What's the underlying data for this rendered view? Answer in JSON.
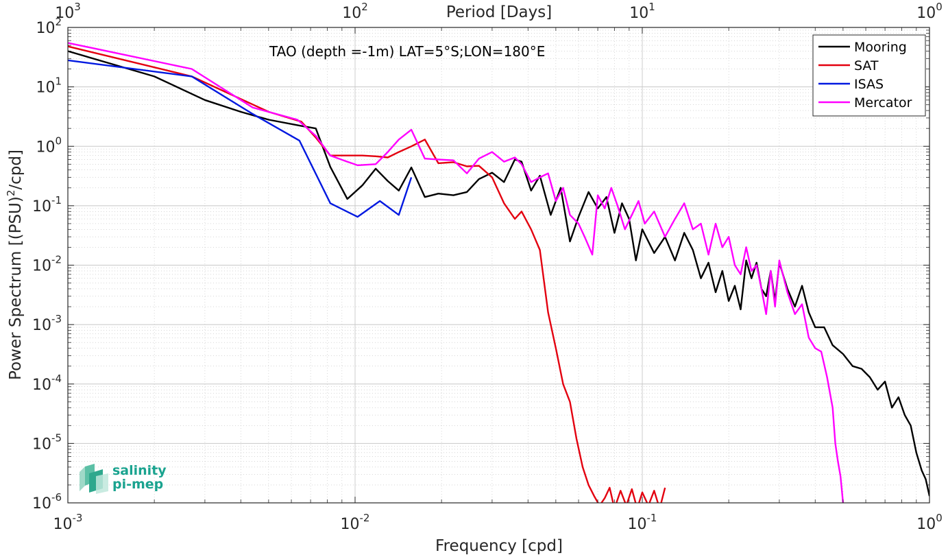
{
  "chart_data": {
    "type": "line",
    "title": "",
    "annotation": "TAO (depth =-1m) LAT=5°S;LON=180°E",
    "xlabel": "Frequency [cpd]",
    "ylabel": "Power Spectrum [(PSU)",
    "ylabel_sup": "2",
    "ylabel_tail": "/cpd]",
    "top_xlabel": "Period [Days]",
    "x_scale": "log",
    "y_scale": "log",
    "xlim": [
      0.001,
      1
    ],
    "ylim": [
      1e-06,
      100
    ],
    "grid": true,
    "legend_position": "top-right",
    "x_ticks": [
      {
        "value": 0.001,
        "base": "10",
        "exp": "-3"
      },
      {
        "value": 0.01,
        "base": "10",
        "exp": "-2"
      },
      {
        "value": 0.1,
        "base": "10",
        "exp": "-1"
      },
      {
        "value": 1,
        "base": "10",
        "exp": "0"
      }
    ],
    "top_ticks": [
      {
        "value": 0.001,
        "base": "10",
        "exp": "3"
      },
      {
        "value": 0.01,
        "base": "10",
        "exp": "2"
      },
      {
        "value": 0.1,
        "base": "10",
        "exp": "1"
      },
      {
        "value": 1,
        "base": "10",
        "exp": "0"
      }
    ],
    "y_ticks": [
      {
        "value": 100,
        "base": "10",
        "exp": "2"
      },
      {
        "value": 10,
        "base": "10",
        "exp": "1"
      },
      {
        "value": 1,
        "base": "10",
        "exp": "0"
      },
      {
        "value": 0.1,
        "base": "10",
        "exp": "-1"
      },
      {
        "value": 0.01,
        "base": "10",
        "exp": "-2"
      },
      {
        "value": 0.001,
        "base": "10",
        "exp": "-3"
      },
      {
        "value": 0.0001,
        "base": "10",
        "exp": "-4"
      },
      {
        "value": 1e-05,
        "base": "10",
        "exp": "-5"
      },
      {
        "value": 1e-06,
        "base": "10",
        "exp": "-6"
      }
    ],
    "series": [
      {
        "name": "Mooring",
        "color": "#000000",
        "x": [
          0.001,
          0.002,
          0.003,
          0.004,
          0.005,
          0.0065,
          0.0073,
          0.0082,
          0.0094,
          0.0106,
          0.0118,
          0.013,
          0.0142,
          0.0157,
          0.0175,
          0.0195,
          0.022,
          0.0245,
          0.027,
          0.03,
          0.033,
          0.036,
          0.038,
          0.041,
          0.044,
          0.048,
          0.052,
          0.056,
          0.06,
          0.065,
          0.07,
          0.075,
          0.08,
          0.085,
          0.09,
          0.095,
          0.1,
          0.11,
          0.12,
          0.13,
          0.14,
          0.15,
          0.16,
          0.17,
          0.18,
          0.19,
          0.2,
          0.21,
          0.22,
          0.23,
          0.24,
          0.25,
          0.26,
          0.27,
          0.28,
          0.29,
          0.3,
          0.32,
          0.34,
          0.36,
          0.38,
          0.4,
          0.43,
          0.46,
          0.5,
          0.54,
          0.58,
          0.62,
          0.66,
          0.7,
          0.74,
          0.78,
          0.82,
          0.86,
          0.9,
          0.94,
          0.97,
          1.0
        ],
        "y": [
          40,
          15,
          6,
          3.8,
          2.8,
          2.2,
          2.0,
          0.45,
          0.13,
          0.22,
          0.42,
          0.26,
          0.18,
          0.44,
          0.14,
          0.16,
          0.15,
          0.17,
          0.28,
          0.36,
          0.25,
          0.6,
          0.55,
          0.18,
          0.32,
          0.07,
          0.2,
          0.025,
          0.065,
          0.17,
          0.09,
          0.14,
          0.035,
          0.11,
          0.06,
          0.012,
          0.04,
          0.016,
          0.03,
          0.012,
          0.035,
          0.018,
          0.006,
          0.011,
          0.0035,
          0.008,
          0.0025,
          0.0045,
          0.0018,
          0.012,
          0.006,
          0.011,
          0.004,
          0.003,
          0.008,
          0.0025,
          0.011,
          0.004,
          0.002,
          0.0045,
          0.0016,
          0.0009,
          0.0009,
          0.00045,
          0.00032,
          0.0002,
          0.00018,
          0.00013,
          8e-05,
          0.00011,
          4e-05,
          6e-05,
          3e-05,
          2e-05,
          7e-06,
          3.5e-06,
          2.5e-06,
          1.3e-06
        ]
      },
      {
        "name": "SAT",
        "color": "#e3000f",
        "x": [
          0.001,
          0.0027,
          0.005,
          0.0065,
          0.0073,
          0.0082,
          0.0094,
          0.0106,
          0.0118,
          0.013,
          0.0142,
          0.0157,
          0.0175,
          0.0195,
          0.022,
          0.0245,
          0.027,
          0.03,
          0.033,
          0.036,
          0.038,
          0.041,
          0.044,
          0.047,
          0.05,
          0.053,
          0.056,
          0.059,
          0.062,
          0.065,
          0.068,
          0.071,
          0.074,
          0.077,
          0.08,
          0.084,
          0.088,
          0.092,
          0.096,
          0.1,
          0.105,
          0.11,
          0.115,
          0.12
        ],
        "y": [
          48,
          15,
          3.8,
          2.6,
          1.4,
          0.7,
          0.7,
          0.7,
          0.68,
          0.65,
          0.8,
          1.0,
          1.3,
          0.52,
          0.54,
          0.46,
          0.47,
          0.3,
          0.11,
          0.06,
          0.08,
          0.04,
          0.018,
          0.0016,
          0.0004,
          0.0001,
          5e-05,
          1.2e-05,
          4e-06,
          2e-06,
          1.3e-06,
          9e-07,
          1.2e-06,
          1.8e-06,
          8e-07,
          1.6e-06,
          9e-07,
          1.7e-06,
          8e-07,
          1.5e-06,
          9e-07,
          1.6e-06,
          8e-07,
          1.8e-06
        ]
      },
      {
        "name": "ISAS",
        "color": "#0018e0",
        "x": [
          0.001,
          0.0027,
          0.0044,
          0.0064,
          0.0082,
          0.0102,
          0.0122,
          0.0142,
          0.0157
        ],
        "y": [
          28,
          15,
          3.5,
          1.25,
          0.11,
          0.065,
          0.12,
          0.07,
          0.3
        ]
      },
      {
        "name": "Mercator",
        "color": "#ff00ff",
        "x": [
          0.001,
          0.0027,
          0.0044,
          0.0063,
          0.0073,
          0.0082,
          0.0094,
          0.0102,
          0.0118,
          0.013,
          0.0142,
          0.0157,
          0.0175,
          0.0195,
          0.022,
          0.0245,
          0.027,
          0.03,
          0.033,
          0.036,
          0.038,
          0.041,
          0.044,
          0.047,
          0.05,
          0.053,
          0.056,
          0.06,
          0.063,
          0.067,
          0.07,
          0.074,
          0.078,
          0.082,
          0.087,
          0.092,
          0.097,
          0.102,
          0.11,
          0.12,
          0.13,
          0.14,
          0.15,
          0.16,
          0.17,
          0.18,
          0.19,
          0.2,
          0.21,
          0.22,
          0.23,
          0.24,
          0.25,
          0.26,
          0.27,
          0.28,
          0.29,
          0.3,
          0.32,
          0.34,
          0.36,
          0.38,
          0.4,
          0.42,
          0.44,
          0.46,
          0.47,
          0.48,
          0.49,
          0.5
        ],
        "y": [
          55,
          20,
          4.5,
          2.8,
          1.5,
          0.7,
          0.55,
          0.48,
          0.5,
          0.8,
          1.3,
          1.9,
          0.62,
          0.6,
          0.58,
          0.35,
          0.62,
          0.8,
          0.55,
          0.65,
          0.5,
          0.25,
          0.3,
          0.35,
          0.12,
          0.2,
          0.07,
          0.05,
          0.03,
          0.015,
          0.15,
          0.09,
          0.2,
          0.1,
          0.04,
          0.07,
          0.12,
          0.05,
          0.08,
          0.03,
          0.06,
          0.11,
          0.04,
          0.05,
          0.015,
          0.05,
          0.02,
          0.03,
          0.01,
          0.007,
          0.02,
          0.008,
          0.01,
          0.004,
          0.0015,
          0.008,
          0.002,
          0.012,
          0.0035,
          0.0015,
          0.0022,
          0.0006,
          0.0004,
          0.00035,
          0.00013,
          4e-05,
          1e-05,
          5e-06,
          2.8e-06,
          1e-06
        ]
      }
    ]
  },
  "logo": {
    "line1": "salinity",
    "line2": "pi-mep"
  }
}
